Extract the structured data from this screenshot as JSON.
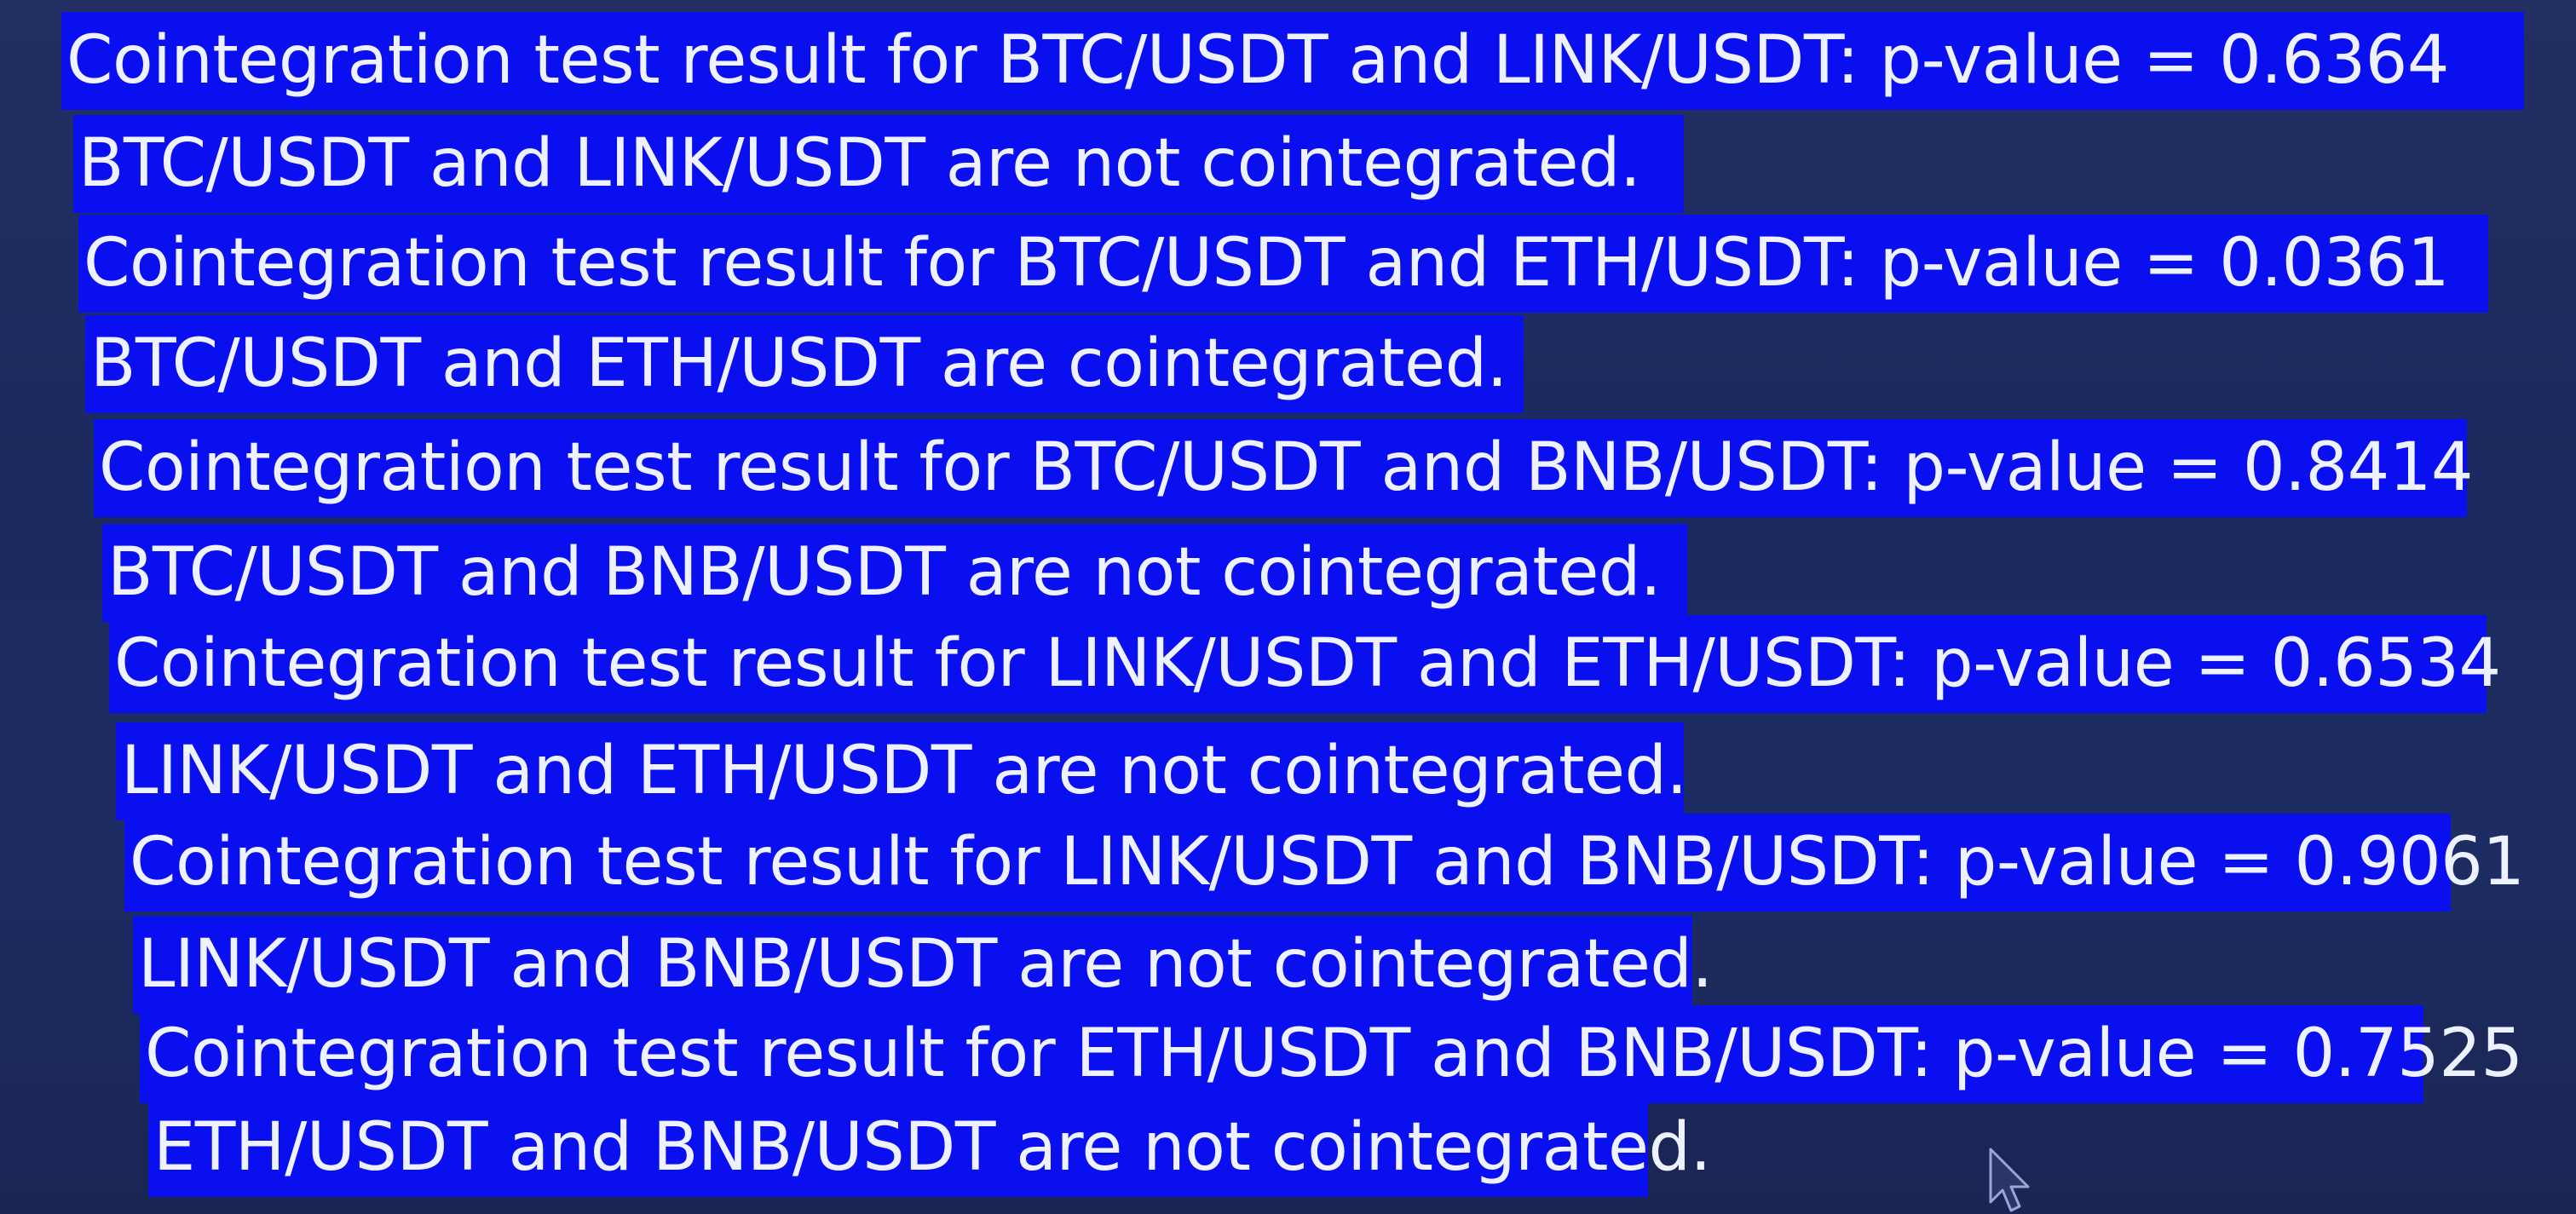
{
  "terminal": {
    "lines": [
      "Cointegration test result for BTC/USDT and LINK/USDT: p-value = 0.6364",
      "BTC/USDT and LINK/USDT are not cointegrated.",
      "Cointegration test result for BTC/USDT and ETH/USDT: p-value = 0.0361",
      "BTC/USDT and ETH/USDT are cointegrated.",
      "Cointegration test result for BTC/USDT and BNB/USDT: p-value = 0.8414",
      "BTC/USDT and BNB/USDT are not cointegrated.",
      "Cointegration test result for LINK/USDT and ETH/USDT: p-value = 0.6534",
      "LINK/USDT and ETH/USDT are not cointegrated.",
      "Cointegration test result for LINK/USDT and BNB/USDT: p-value = 0.9061",
      "LINK/USDT and BNB/USDT are not cointegrated.",
      "Cointegration test result for ETH/USDT and BNB/USDT: p-value = 0.7525",
      "ETH/USDT and BNB/USDT are not cointegrated."
    ]
  },
  "colors": {
    "selection": "#0a0ff0",
    "text": "#eef1ff",
    "background": "#1e2a5c"
  },
  "icons": {
    "cursor": "mouse-pointer-icon"
  }
}
